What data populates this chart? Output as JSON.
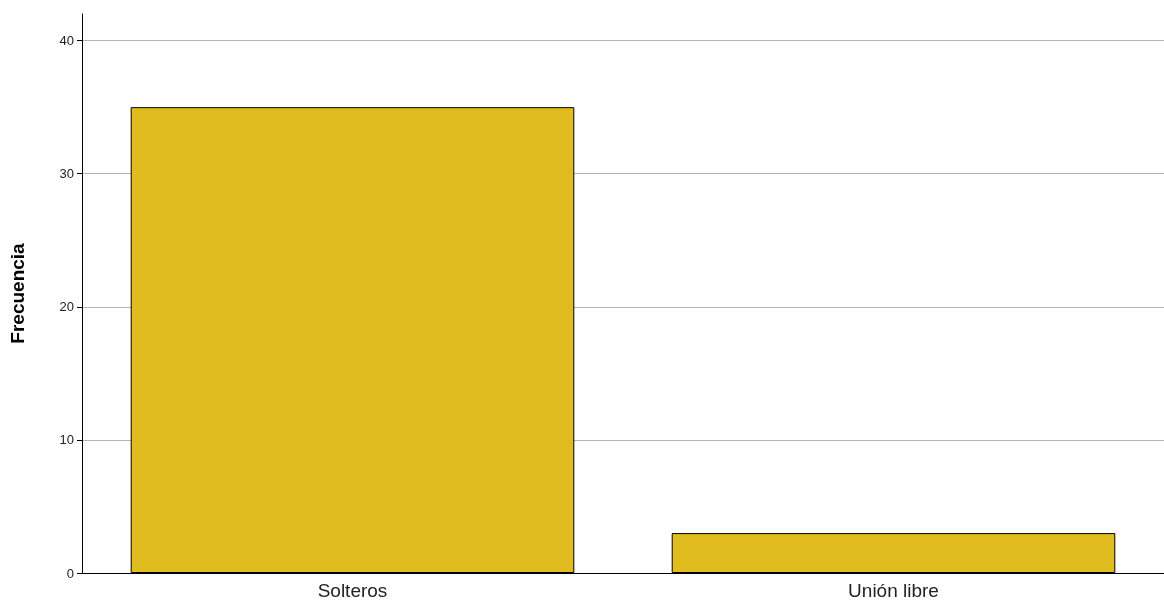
{
  "chart_data": {
    "type": "bar",
    "ylabel": "Frecuencia",
    "categories": [
      "Solteros",
      "Unión libre"
    ],
    "values": [
      35,
      3
    ],
    "color": "#e0bc1e",
    "ylim": [
      0,
      42
    ],
    "yticks": [
      0,
      10,
      20,
      30,
      40
    ],
    "grid": "y"
  }
}
